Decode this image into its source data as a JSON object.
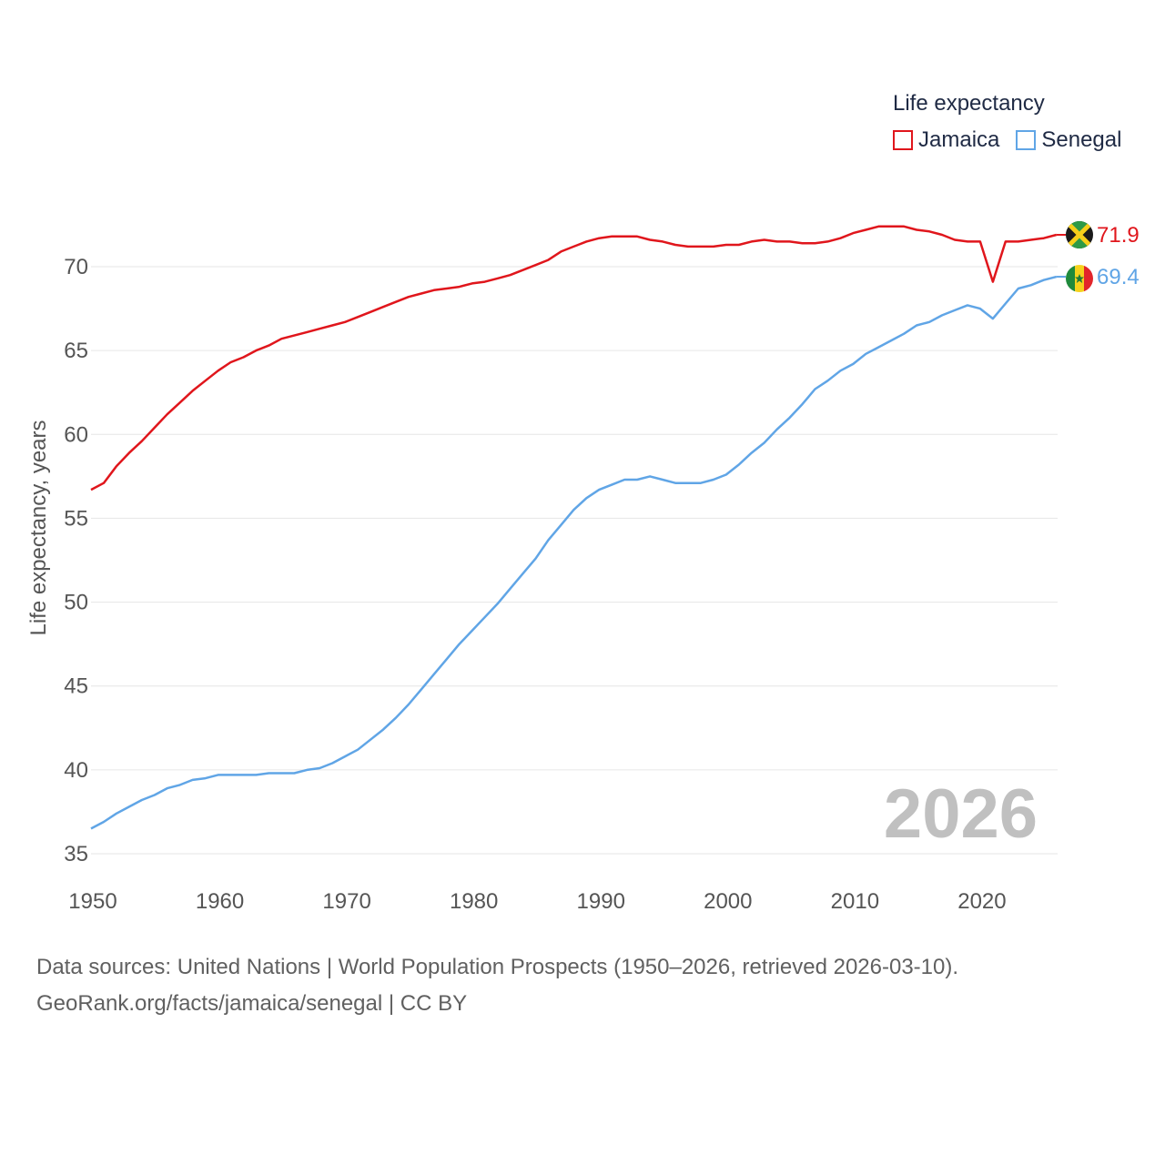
{
  "legend": {
    "title": "Life expectancy",
    "items": [
      {
        "name": "Jamaica",
        "color": "#e0161c"
      },
      {
        "name": "Senegal",
        "color": "#60a5e6"
      }
    ]
  },
  "source": {
    "line1": "Data sources: United Nations | World Population Prospects (1950–2026, retrieved 2026-03-10).",
    "line2": "GeoRank.org/facts/jamaica/senegal | CC BY"
  },
  "chart_data": {
    "type": "line",
    "title": "Life expectancy",
    "ylabel": "Life expectancy, years",
    "xlabel": "",
    "year_watermark": "2026",
    "xlim": [
      1950,
      2026
    ],
    "ylim": [
      35,
      73.5
    ],
    "xticks": [
      1950,
      1960,
      1970,
      1980,
      1990,
      2000,
      2010,
      2020
    ],
    "yticks": [
      35,
      40,
      45,
      50,
      55,
      60,
      65,
      70
    ],
    "grid": true,
    "x": [
      1950,
      1951,
      1952,
      1953,
      1954,
      1955,
      1956,
      1957,
      1958,
      1959,
      1960,
      1961,
      1962,
      1963,
      1964,
      1965,
      1966,
      1967,
      1968,
      1969,
      1970,
      1971,
      1972,
      1973,
      1974,
      1975,
      1976,
      1977,
      1978,
      1979,
      1980,
      1981,
      1982,
      1983,
      1984,
      1985,
      1986,
      1987,
      1988,
      1989,
      1990,
      1991,
      1992,
      1993,
      1994,
      1995,
      1996,
      1997,
      1998,
      1999,
      2000,
      2001,
      2002,
      2003,
      2004,
      2005,
      2006,
      2007,
      2008,
      2009,
      2010,
      2011,
      2012,
      2013,
      2014,
      2015,
      2016,
      2017,
      2018,
      2019,
      2020,
      2021,
      2022,
      2023,
      2024,
      2025,
      2026
    ],
    "series": [
      {
        "name": "Jamaica",
        "color": "#e0161c",
        "end_label": "71.9",
        "flag": "jamaica",
        "values": [
          56.7,
          57.1,
          58.1,
          58.9,
          59.6,
          60.4,
          61.2,
          61.9,
          62.6,
          63.2,
          63.8,
          64.3,
          64.6,
          65.0,
          65.3,
          65.7,
          65.9,
          66.1,
          66.3,
          66.5,
          66.7,
          67.0,
          67.3,
          67.6,
          67.9,
          68.2,
          68.4,
          68.6,
          68.7,
          68.8,
          69.0,
          69.1,
          69.3,
          69.5,
          69.8,
          70.1,
          70.4,
          70.9,
          71.2,
          71.5,
          71.7,
          71.8,
          71.8,
          71.8,
          71.6,
          71.5,
          71.3,
          71.2,
          71.2,
          71.2,
          71.3,
          71.3,
          71.5,
          71.6,
          71.5,
          71.5,
          71.4,
          71.4,
          71.5,
          71.7,
          72.0,
          72.2,
          72.4,
          72.4,
          72.4,
          72.2,
          72.1,
          71.9,
          71.6,
          71.5,
          71.5,
          69.1,
          71.5,
          71.5,
          71.6,
          71.7,
          71.9
        ]
      },
      {
        "name": "Senegal",
        "color": "#60a5e6",
        "end_label": "69.4",
        "flag": "senegal",
        "values": [
          36.5,
          36.9,
          37.4,
          37.8,
          38.2,
          38.5,
          38.9,
          39.1,
          39.4,
          39.5,
          39.7,
          39.7,
          39.7,
          39.7,
          39.8,
          39.8,
          39.8,
          40.0,
          40.1,
          40.4,
          40.8,
          41.2,
          41.8,
          42.4,
          43.1,
          43.9,
          44.8,
          45.7,
          46.6,
          47.5,
          48.3,
          49.1,
          49.9,
          50.8,
          51.7,
          52.6,
          53.7,
          54.6,
          55.5,
          56.2,
          56.7,
          57.0,
          57.3,
          57.3,
          57.5,
          57.3,
          57.1,
          57.1,
          57.1,
          57.3,
          57.6,
          58.2,
          58.9,
          59.5,
          60.3,
          61.0,
          61.8,
          62.7,
          63.2,
          63.8,
          64.2,
          64.8,
          65.2,
          65.6,
          66.0,
          66.5,
          66.7,
          67.1,
          67.4,
          67.7,
          67.5,
          66.9,
          67.8,
          68.7,
          68.9,
          69.2,
          69.4
        ]
      }
    ]
  }
}
